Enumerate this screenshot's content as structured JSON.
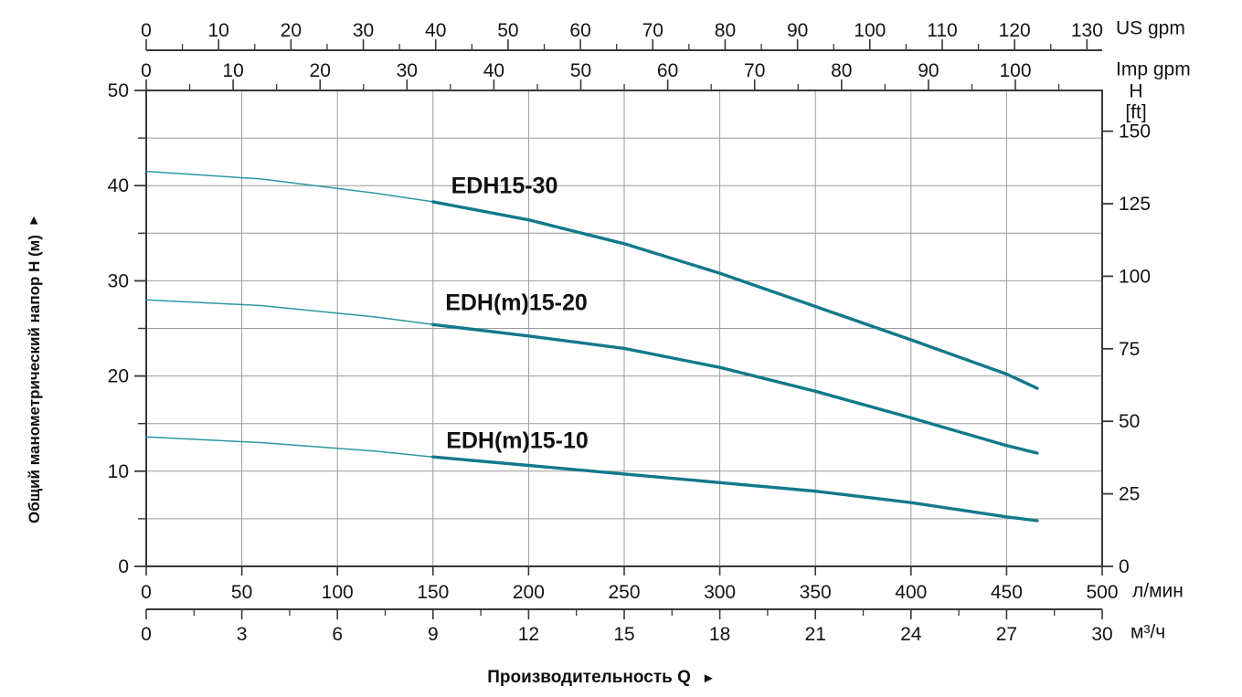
{
  "chart_data": {
    "type": "line",
    "x_title": "Производительность Q",
    "x_title_arrow": "►",
    "y_title": "Общий манометрический напор H (м)",
    "y_title_arrow": "▲",
    "x_max_lmin": 500,
    "y_max_m": 50,
    "thick_from_lmin": 150,
    "grid": {
      "x_step_lmin": 50,
      "y_step_m": 5
    },
    "colors": {
      "curve_thick": "#12798b",
      "curve_thin": "#2d97a5",
      "grid": "#9b9b9b",
      "axis": "#383838",
      "text": "#141414",
      "background": "#ffffff"
    },
    "axes": {
      "us_gpm": {
        "label": "US gpm",
        "lmin_per_unit": 3.785,
        "minor_step": 5,
        "minor_max": 130,
        "major_ticks": [
          0,
          10,
          20,
          30,
          40,
          50,
          60,
          70,
          80,
          90,
          100,
          110,
          120,
          130
        ]
      },
      "imp_gpm": {
        "label": "Imp gpm",
        "lmin_per_unit": 4.546,
        "minor_step": 5,
        "minor_max": 107,
        "major_ticks": [
          0,
          10,
          20,
          30,
          40,
          50,
          60,
          70,
          80,
          90,
          100
        ]
      },
      "lmin": {
        "label": "л/мин",
        "major_ticks": [
          0,
          50,
          100,
          150,
          200,
          250,
          300,
          350,
          400,
          450,
          500
        ]
      },
      "m3h": {
        "label": "м³/ч",
        "lmin_per_unit": 16.6667,
        "minor_step": 1.5,
        "minor_max": 30,
        "major_ticks": [
          0,
          3,
          6,
          9,
          12,
          15,
          18,
          21,
          24,
          27,
          30
        ]
      },
      "head_m": {
        "major_ticks": [
          0,
          10,
          20,
          30,
          40,
          50
        ],
        "minor_step": 5
      },
      "head_ft": {
        "title_line1": "H",
        "title_line2": "[ft]",
        "m_per_unit": 0.3048,
        "major_ticks": [
          0,
          25,
          50,
          75,
          100,
          125,
          150
        ]
      }
    },
    "series": [
      {
        "name": "EDH15-30",
        "points": [
          [
            0,
            41.5
          ],
          [
            60,
            40.7
          ],
          [
            120,
            39.2
          ],
          [
            150,
            38.3
          ],
          [
            200,
            36.4
          ],
          [
            250,
            33.9
          ],
          [
            300,
            30.8
          ],
          [
            350,
            27.3
          ],
          [
            400,
            23.8
          ],
          [
            450,
            20.2
          ],
          [
            466,
            18.7
          ]
        ]
      },
      {
        "name": "EDH(m)15-20",
        "points": [
          [
            0,
            28.0
          ],
          [
            60,
            27.4
          ],
          [
            120,
            26.2
          ],
          [
            150,
            25.4
          ],
          [
            200,
            24.2
          ],
          [
            250,
            22.9
          ],
          [
            300,
            20.9
          ],
          [
            350,
            18.4
          ],
          [
            400,
            15.6
          ],
          [
            450,
            12.7
          ],
          [
            466,
            11.9
          ]
        ]
      },
      {
        "name": "EDH(m)15-10",
        "points": [
          [
            0,
            13.6
          ],
          [
            60,
            13.0
          ],
          [
            120,
            12.1
          ],
          [
            150,
            11.5
          ],
          [
            200,
            10.6
          ],
          [
            250,
            9.7
          ],
          [
            300,
            8.8
          ],
          [
            350,
            7.9
          ],
          [
            400,
            6.7
          ],
          [
            450,
            5.2
          ],
          [
            466,
            4.8
          ]
        ]
      }
    ]
  }
}
